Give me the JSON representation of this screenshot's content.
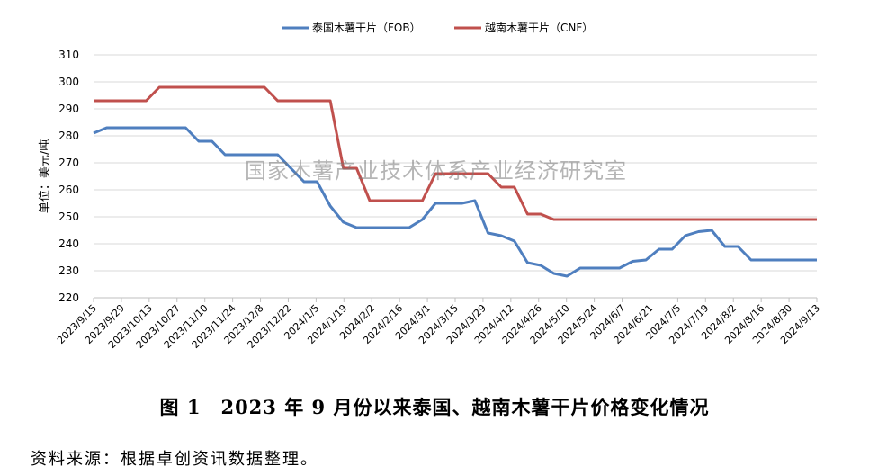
{
  "chart_data": {
    "type": "line",
    "ylabel": "单位：美元/吨",
    "ylim": [
      220,
      310
    ],
    "yticks": [
      220,
      230,
      240,
      250,
      260,
      270,
      280,
      290,
      300,
      310
    ],
    "xlabels": [
      "2023/9/15",
      "2023/9/29",
      "2023/10/13",
      "2023/10/27",
      "2023/11/10",
      "2023/11/24",
      "2023/12/8",
      "2023/12/22",
      "2024/1/5",
      "2024/1/19",
      "2024/2/2",
      "2024/2/16",
      "2024/3/1",
      "2024/3/15",
      "2024/3/29",
      "2024/4/12",
      "2024/4/26",
      "2024/5/10",
      "2024/5/24",
      "2024/6/7",
      "2024/6/21",
      "2024/7/5",
      "2024/7/19",
      "2024/8/2",
      "2024/8/16",
      "2024/8/30",
      "2024/9/13"
    ],
    "grid": true,
    "legend": "top",
    "series": [
      {
        "name": "泰国木薯干片（FOB）",
        "color": "#4f7fbf",
        "values": [
          281,
          283,
          283,
          283,
          283,
          283,
          283,
          283,
          278,
          278,
          273,
          273,
          273,
          273,
          273,
          268,
          263,
          263,
          254,
          248,
          246,
          246,
          246,
          246,
          246,
          249,
          255,
          255,
          255,
          256,
          244,
          243,
          241,
          233,
          232,
          229,
          228,
          231,
          231,
          231,
          231,
          233.5,
          234,
          238,
          238,
          243,
          244.5,
          245,
          239,
          239,
          234,
          234,
          234,
          234,
          234,
          234
        ]
      },
      {
        "name": "越南木薯干片（CNF）",
        "color": "#c0504d",
        "values": [
          293,
          293,
          293,
          293,
          293,
          298,
          298,
          298,
          298,
          298,
          298,
          298,
          298,
          298,
          293,
          293,
          293,
          293,
          293,
          268,
          268,
          256,
          256,
          256,
          256,
          256,
          266,
          266,
          266,
          266,
          266,
          261,
          261,
          251,
          251,
          249,
          249,
          249,
          249,
          249,
          249,
          249,
          249,
          249,
          249,
          249,
          249,
          249,
          249,
          249,
          249,
          249,
          249,
          249,
          249,
          249
        ]
      }
    ]
  },
  "watermark": "国家木薯产业技术体系产业经济研究室",
  "caption": "图 1　2023 年 9 月份以来泰国、越南木薯干片价格变化情况",
  "source": "资料来源：根据卓创资讯数据整理。"
}
